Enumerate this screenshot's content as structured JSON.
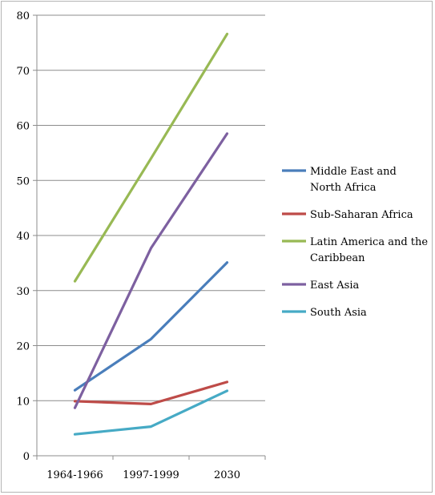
{
  "chart_data": {
    "type": "line",
    "title": "",
    "xlabel": "",
    "ylabel": "",
    "categories": [
      "1964-1966",
      "1997-1999",
      "2030"
    ],
    "ylim": [
      0,
      80
    ],
    "yticks": [
      "0",
      "10",
      "20",
      "30",
      "40",
      "50",
      "60",
      "70",
      "80"
    ],
    "grid": "horizontal",
    "legend_position": "right",
    "series": [
      {
        "name": "Middle East and North Africa",
        "color": "#4a7ebb",
        "values": [
          11.9,
          21.2,
          35.1
        ],
        "label_lines": [
          "Middle East and",
          "North Africa"
        ]
      },
      {
        "name": "Sub-Saharan Africa",
        "color": "#be4b48",
        "values": [
          9.9,
          9.4,
          13.4
        ],
        "label_lines": [
          "Sub-Saharan Africa"
        ]
      },
      {
        "name": "Latin America and the Caribbean",
        "color": "#98b954",
        "values": [
          31.7,
          54.0,
          76.6
        ],
        "label_lines": [
          "Latin America and the",
          "Caribbean"
        ]
      },
      {
        "name": "East Asia",
        "color": "#7d60a0",
        "values": [
          8.7,
          37.7,
          58.5
        ],
        "label_lines": [
          "East Asia"
        ]
      },
      {
        "name": "South Asia",
        "color": "#46aac5",
        "values": [
          3.9,
          5.3,
          11.8
        ],
        "label_lines": [
          "South Asia"
        ]
      }
    ]
  }
}
